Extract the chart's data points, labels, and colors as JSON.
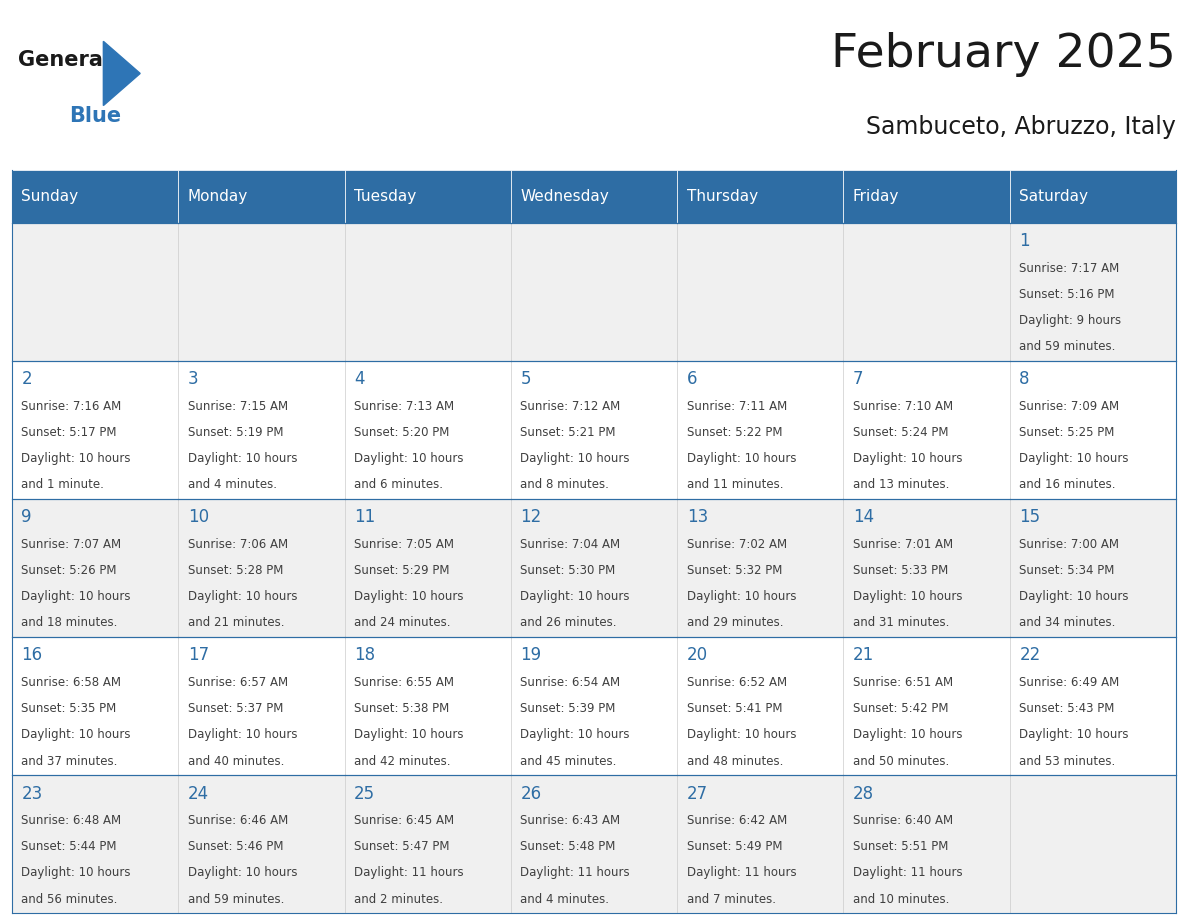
{
  "title": "February 2025",
  "subtitle": "Sambuceto, Abruzzo, Italy",
  "days_of_week": [
    "Sunday",
    "Monday",
    "Tuesday",
    "Wednesday",
    "Thursday",
    "Friday",
    "Saturday"
  ],
  "header_bg_color": "#2E6DA4",
  "header_text_color": "#FFFFFF",
  "cell_bg_color_light": "#F0F0F0",
  "cell_bg_color_white": "#FFFFFF",
  "day_number_color": "#2E6DA4",
  "info_text_color": "#404040",
  "border_color": "#2E6DA4",
  "title_color": "#1a1a1a",
  "subtitle_color": "#1a1a1a",
  "logo_general_color": "#1a1a1a",
  "logo_blue_color": "#2E75B6",
  "weeks": [
    [
      null,
      null,
      null,
      null,
      null,
      null,
      1
    ],
    [
      2,
      3,
      4,
      5,
      6,
      7,
      8
    ],
    [
      9,
      10,
      11,
      12,
      13,
      14,
      15
    ],
    [
      16,
      17,
      18,
      19,
      20,
      21,
      22
    ],
    [
      23,
      24,
      25,
      26,
      27,
      28,
      null
    ]
  ],
  "cell_data": {
    "1": {
      "sunrise": "7:17 AM",
      "sunset": "5:16 PM",
      "daylight_line1": "Daylight: 9 hours",
      "daylight_line2": "and 59 minutes."
    },
    "2": {
      "sunrise": "7:16 AM",
      "sunset": "5:17 PM",
      "daylight_line1": "Daylight: 10 hours",
      "daylight_line2": "and 1 minute."
    },
    "3": {
      "sunrise": "7:15 AM",
      "sunset": "5:19 PM",
      "daylight_line1": "Daylight: 10 hours",
      "daylight_line2": "and 4 minutes."
    },
    "4": {
      "sunrise": "7:13 AM",
      "sunset": "5:20 PM",
      "daylight_line1": "Daylight: 10 hours",
      "daylight_line2": "and 6 minutes."
    },
    "5": {
      "sunrise": "7:12 AM",
      "sunset": "5:21 PM",
      "daylight_line1": "Daylight: 10 hours",
      "daylight_line2": "and 8 minutes."
    },
    "6": {
      "sunrise": "7:11 AM",
      "sunset": "5:22 PM",
      "daylight_line1": "Daylight: 10 hours",
      "daylight_line2": "and 11 minutes."
    },
    "7": {
      "sunrise": "7:10 AM",
      "sunset": "5:24 PM",
      "daylight_line1": "Daylight: 10 hours",
      "daylight_line2": "and 13 minutes."
    },
    "8": {
      "sunrise": "7:09 AM",
      "sunset": "5:25 PM",
      "daylight_line1": "Daylight: 10 hours",
      "daylight_line2": "and 16 minutes."
    },
    "9": {
      "sunrise": "7:07 AM",
      "sunset": "5:26 PM",
      "daylight_line1": "Daylight: 10 hours",
      "daylight_line2": "and 18 minutes."
    },
    "10": {
      "sunrise": "7:06 AM",
      "sunset": "5:28 PM",
      "daylight_line1": "Daylight: 10 hours",
      "daylight_line2": "and 21 minutes."
    },
    "11": {
      "sunrise": "7:05 AM",
      "sunset": "5:29 PM",
      "daylight_line1": "Daylight: 10 hours",
      "daylight_line2": "and 24 minutes."
    },
    "12": {
      "sunrise": "7:04 AM",
      "sunset": "5:30 PM",
      "daylight_line1": "Daylight: 10 hours",
      "daylight_line2": "and 26 minutes."
    },
    "13": {
      "sunrise": "7:02 AM",
      "sunset": "5:32 PM",
      "daylight_line1": "Daylight: 10 hours",
      "daylight_line2": "and 29 minutes."
    },
    "14": {
      "sunrise": "7:01 AM",
      "sunset": "5:33 PM",
      "daylight_line1": "Daylight: 10 hours",
      "daylight_line2": "and 31 minutes."
    },
    "15": {
      "sunrise": "7:00 AM",
      "sunset": "5:34 PM",
      "daylight_line1": "Daylight: 10 hours",
      "daylight_line2": "and 34 minutes."
    },
    "16": {
      "sunrise": "6:58 AM",
      "sunset": "5:35 PM",
      "daylight_line1": "Daylight: 10 hours",
      "daylight_line2": "and 37 minutes."
    },
    "17": {
      "sunrise": "6:57 AM",
      "sunset": "5:37 PM",
      "daylight_line1": "Daylight: 10 hours",
      "daylight_line2": "and 40 minutes."
    },
    "18": {
      "sunrise": "6:55 AM",
      "sunset": "5:38 PM",
      "daylight_line1": "Daylight: 10 hours",
      "daylight_line2": "and 42 minutes."
    },
    "19": {
      "sunrise": "6:54 AM",
      "sunset": "5:39 PM",
      "daylight_line1": "Daylight: 10 hours",
      "daylight_line2": "and 45 minutes."
    },
    "20": {
      "sunrise": "6:52 AM",
      "sunset": "5:41 PM",
      "daylight_line1": "Daylight: 10 hours",
      "daylight_line2": "and 48 minutes."
    },
    "21": {
      "sunrise": "6:51 AM",
      "sunset": "5:42 PM",
      "daylight_line1": "Daylight: 10 hours",
      "daylight_line2": "and 50 minutes."
    },
    "22": {
      "sunrise": "6:49 AM",
      "sunset": "5:43 PM",
      "daylight_line1": "Daylight: 10 hours",
      "daylight_line2": "and 53 minutes."
    },
    "23": {
      "sunrise": "6:48 AM",
      "sunset": "5:44 PM",
      "daylight_line1": "Daylight: 10 hours",
      "daylight_line2": "and 56 minutes."
    },
    "24": {
      "sunrise": "6:46 AM",
      "sunset": "5:46 PM",
      "daylight_line1": "Daylight: 10 hours",
      "daylight_line2": "and 59 minutes."
    },
    "25": {
      "sunrise": "6:45 AM",
      "sunset": "5:47 PM",
      "daylight_line1": "Daylight: 11 hours",
      "daylight_line2": "and 2 minutes."
    },
    "26": {
      "sunrise": "6:43 AM",
      "sunset": "5:48 PM",
      "daylight_line1": "Daylight: 11 hours",
      "daylight_line2": "and 4 minutes."
    },
    "27": {
      "sunrise": "6:42 AM",
      "sunset": "5:49 PM",
      "daylight_line1": "Daylight: 11 hours",
      "daylight_line2": "and 7 minutes."
    },
    "28": {
      "sunrise": "6:40 AM",
      "sunset": "5:51 PM",
      "daylight_line1": "Daylight: 11 hours",
      "daylight_line2": "and 10 minutes."
    }
  }
}
